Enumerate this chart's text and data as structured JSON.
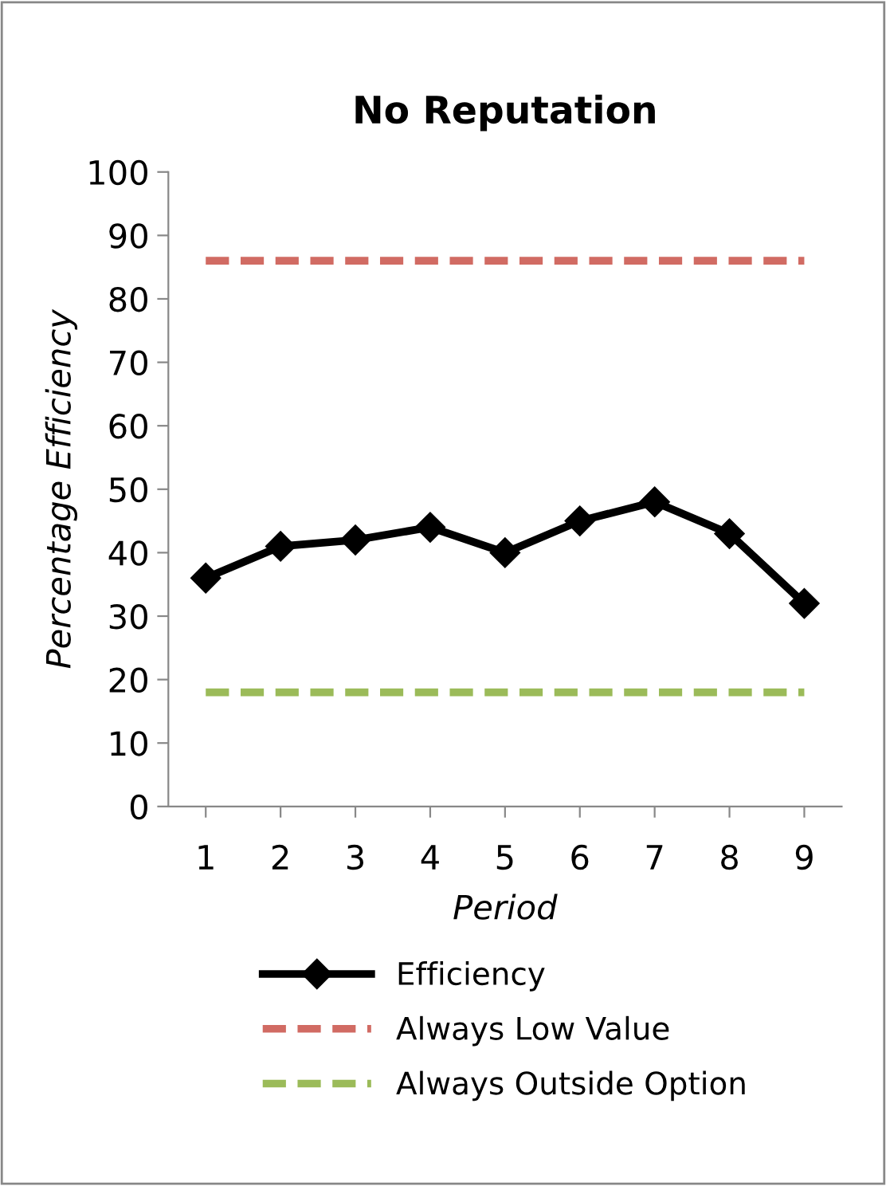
{
  "chart_data": {
    "type": "line",
    "title": "No Reputation",
    "xlabel": "Period",
    "ylabel": "Percentage Efficiency",
    "categories": [
      "1",
      "2",
      "3",
      "4",
      "5",
      "6",
      "7",
      "8",
      "9"
    ],
    "series": [
      {
        "name": "Efficiency",
        "color": "#000000",
        "values": [
          36,
          41,
          42,
          44,
          40,
          45,
          48,
          43,
          32
        ],
        "marker": "diamond",
        "line_style": "solid"
      },
      {
        "name": "Always Low Value",
        "color": "#d16b63",
        "values": [
          86,
          86,
          86,
          86,
          86,
          86,
          86,
          86,
          86
        ],
        "marker": "none",
        "line_style": "dashed"
      },
      {
        "name": "Always Outside Option",
        "color": "#9bbb59",
        "values": [
          18,
          18,
          18,
          18,
          18,
          18,
          18,
          18,
          18
        ],
        "marker": "none",
        "line_style": "dashed"
      }
    ],
    "ylim": [
      0,
      100
    ],
    "yticks": [
      0,
      10,
      20,
      30,
      40,
      50,
      60,
      70,
      80,
      90,
      100
    ],
    "grid": false,
    "legend": "bottom"
  }
}
